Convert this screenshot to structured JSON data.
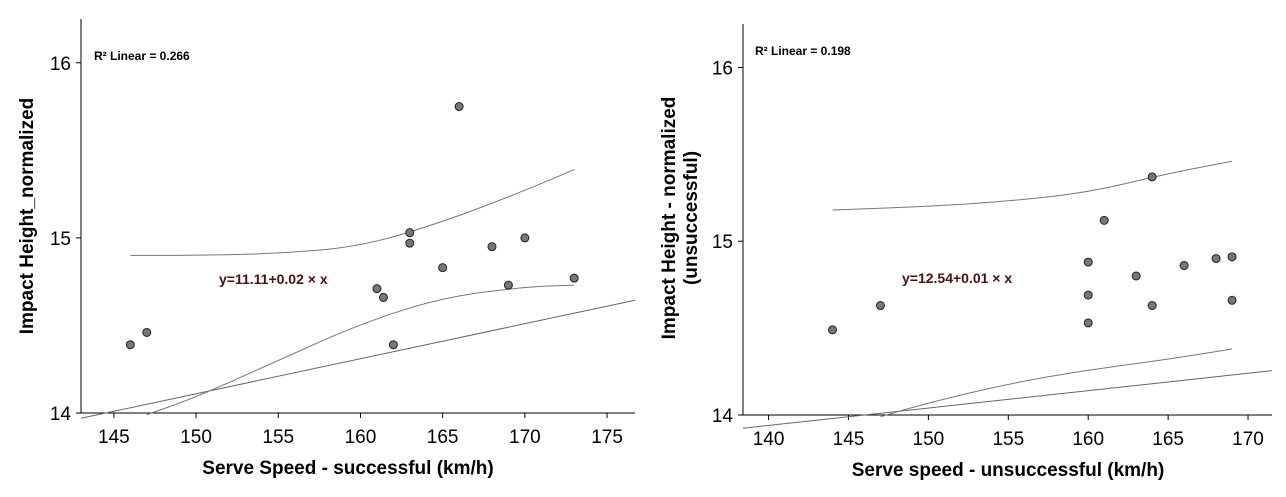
{
  "chart_data": [
    {
      "type": "scatter",
      "xlabel": "Serve Speed - successful (km/h)",
      "ylabel": "Impact Height_normalized",
      "r2_label": "R² Linear = 0.266",
      "equation": "y=11.11+0.02 × x",
      "fit": {
        "intercept": 11.11,
        "slope": 0.02
      },
      "xlim": [
        143,
        176.7
      ],
      "ylim": [
        14,
        16.25
      ],
      "xticks": [
        145,
        150,
        155,
        160,
        165,
        170,
        175
      ],
      "yticks": [
        14,
        15,
        16
      ],
      "points": [
        [
          146,
          14.39
        ],
        [
          147,
          14.46
        ],
        [
          161,
          14.71
        ],
        [
          161.4,
          14.66
        ],
        [
          162,
          14.39
        ],
        [
          163,
          15.03
        ],
        [
          163,
          14.97
        ],
        [
          165,
          14.83
        ],
        [
          166,
          15.75
        ],
        [
          168,
          14.95
        ],
        [
          169,
          14.73
        ],
        [
          170,
          15.0
        ],
        [
          173,
          14.77
        ]
      ],
      "ci_upper": [
        [
          146,
          14.9
        ],
        [
          150,
          14.9
        ],
        [
          155,
          14.91
        ],
        [
          160,
          14.95
        ],
        [
          165,
          15.09
        ],
        [
          170,
          15.27
        ],
        [
          173,
          15.39
        ]
      ],
      "ci_lower": [
        [
          147,
          13.99
        ],
        [
          150,
          14.09
        ],
        [
          155,
          14.3
        ],
        [
          160,
          14.51
        ],
        [
          165,
          14.66
        ],
        [
          170,
          14.72
        ],
        [
          173,
          14.73
        ]
      ]
    },
    {
      "type": "scatter",
      "xlabel": "Serve speed - unsuccessful (km/h)",
      "ylabel": "Impact Height - normalized\n(unsuccessful)",
      "r2_label": "R² Linear = 0.198",
      "equation": "y=12.54+0.01 × x",
      "fit": {
        "intercept": 12.54,
        "slope": 0.01
      },
      "xlim": [
        138.4,
        171.5
      ],
      "ylim": [
        14,
        16.25
      ],
      "xticks": [
        140,
        145,
        150,
        155,
        160,
        165,
        170
      ],
      "yticks": [
        14,
        15,
        16
      ],
      "points": [
        [
          144,
          14.49
        ],
        [
          147,
          14.63
        ],
        [
          160,
          14.88
        ],
        [
          160,
          14.69
        ],
        [
          160,
          14.53
        ],
        [
          161,
          15.12
        ],
        [
          163,
          14.8
        ],
        [
          164,
          15.37
        ],
        [
          164,
          14.63
        ],
        [
          166,
          14.86
        ],
        [
          168,
          14.9
        ],
        [
          169,
          14.91
        ],
        [
          169,
          14.66
        ]
      ],
      "ci_upper": [
        [
          144,
          15.18
        ],
        [
          150,
          15.2
        ],
        [
          155,
          15.23
        ],
        [
          160,
          15.28
        ],
        [
          165,
          15.39
        ],
        [
          169,
          15.46
        ]
      ],
      "ci_lower": [
        [
          147,
          13.99
        ],
        [
          150,
          14.07
        ],
        [
          155,
          14.18
        ],
        [
          160,
          14.26
        ],
        [
          165,
          14.32
        ],
        [
          169,
          14.38
        ]
      ]
    }
  ]
}
